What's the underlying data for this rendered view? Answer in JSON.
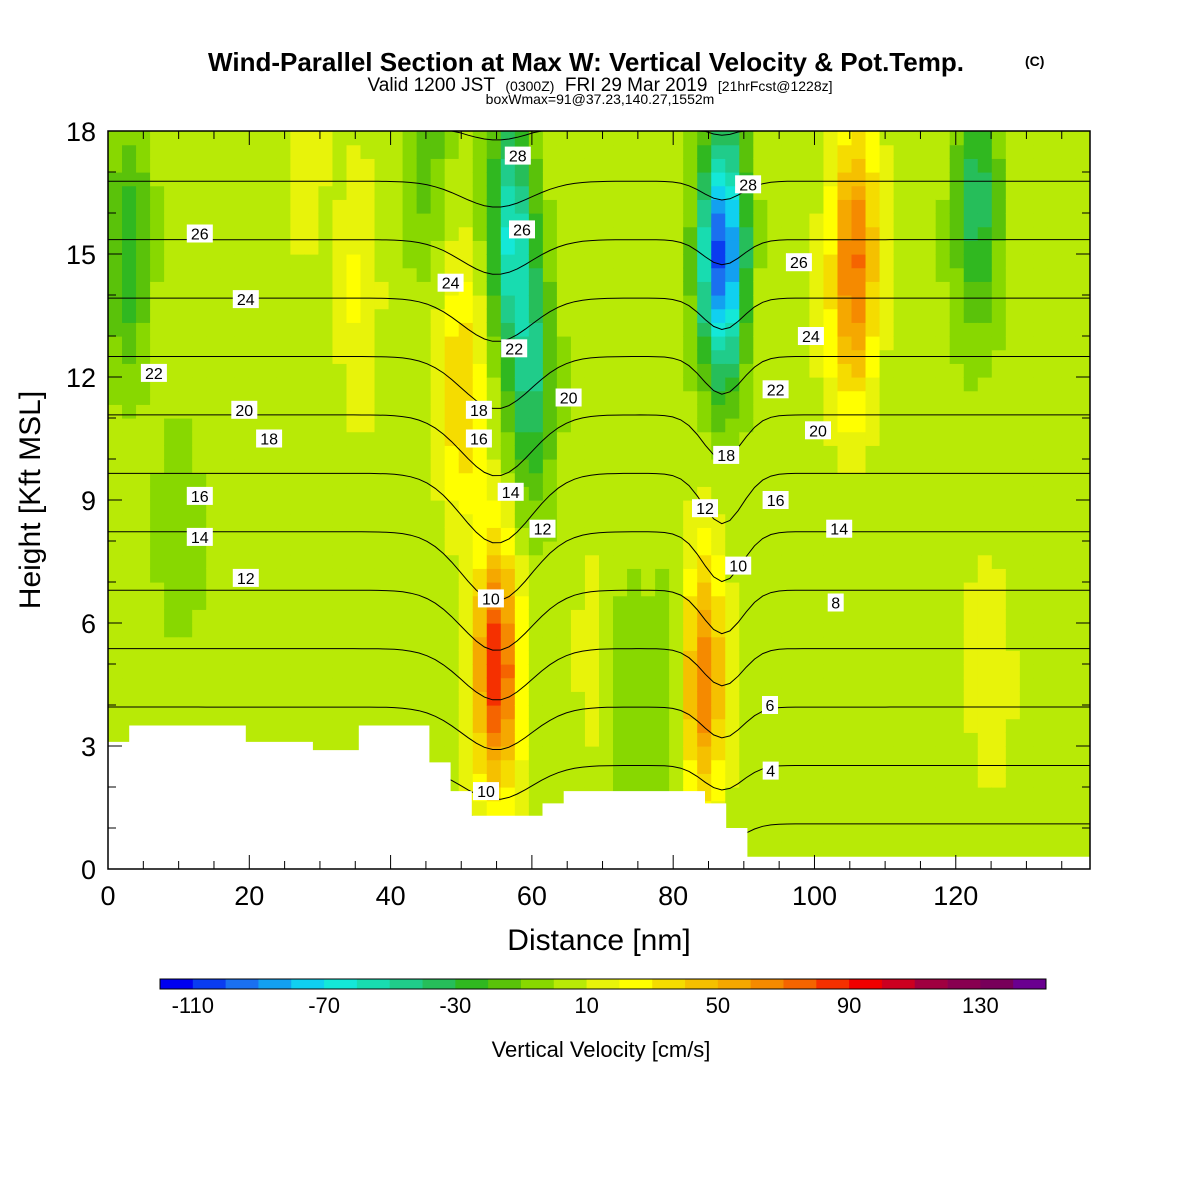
{
  "header": {
    "title": "Wind-Parallel Section at Max W: Vertical Velocity & Pot.Temp.",
    "copyright": "(C)",
    "valid_prefix": "Valid 1200 JST",
    "utc": "(0300Z)",
    "valid_date": "FRI 29 Mar 2019",
    "forecast": "[21hrFcst@1228z]",
    "box_info": "boxWmax=91@37.23,140.27,1552m"
  },
  "colors": {
    "scale": [
      "#0000f0",
      "#0a3cf0",
      "#1a70f0",
      "#13a0f0",
      "#10d0f0",
      "#14e8d8",
      "#18dcb0",
      "#20cc8a",
      "#26be5a",
      "#30b820",
      "#5ac20a",
      "#88d800",
      "#b8ea06",
      "#e8f30a",
      "#ffff00",
      "#f5dc00",
      "#f5c000",
      "#f5a800",
      "#f58a00",
      "#f56400",
      "#f53000",
      "#f00000",
      "#cc0020",
      "#a00040",
      "#880050",
      "#78005a",
      "#6a0090"
    ],
    "terrain": "#ffffff",
    "contour": "#000000"
  },
  "chart_data": {
    "type": "heatmap",
    "xlabel": "Distance [nm]",
    "ylabel": "Height [Kft MSL]",
    "xlim": [
      0,
      139
    ],
    "ylim": [
      0,
      18
    ],
    "x_ticks": [
      0,
      20,
      40,
      60,
      80,
      100,
      120
    ],
    "y_ticks": [
      0,
      3,
      6,
      9,
      12,
      15,
      18
    ],
    "colorbar": {
      "label": "Vertical Velocity [cm/s]",
      "min": -120,
      "max": 150,
      "step": 10,
      "tick_labels": [
        -110,
        -70,
        -30,
        10,
        50,
        90,
        130
      ]
    },
    "max_vertical_velocity_cm_s": 91,
    "max_location": {
      "lat": 37.23,
      "lon": 140.27,
      "height_m": 1552
    },
    "isentropes_c": [
      4,
      6,
      8,
      10,
      12,
      14,
      16,
      18,
      20,
      22,
      24,
      26,
      28
    ],
    "contour_labels": [
      {
        "value": 28,
        "x": 58,
        "y": 17.4
      },
      {
        "value": 28,
        "x": 90.6,
        "y": 16.7
      },
      {
        "value": 26,
        "x": 13,
        "y": 15.5
      },
      {
        "value": 26,
        "x": 58.6,
        "y": 15.6
      },
      {
        "value": 26,
        "x": 97.8,
        "y": 14.8
      },
      {
        "value": 24,
        "x": 48.5,
        "y": 14.3
      },
      {
        "value": 24,
        "x": 19.5,
        "y": 13.9
      },
      {
        "value": 24,
        "x": 99.5,
        "y": 13.0
      },
      {
        "value": 22,
        "x": 57.5,
        "y": 12.7
      },
      {
        "value": 22,
        "x": 6.5,
        "y": 12.1
      },
      {
        "value": 22,
        "x": 94.5,
        "y": 11.7
      },
      {
        "value": 20,
        "x": 65.2,
        "y": 11.5
      },
      {
        "value": 20,
        "x": 19.3,
        "y": 11.2
      },
      {
        "value": 20,
        "x": 100.5,
        "y": 10.7
      },
      {
        "value": 18,
        "x": 52.5,
        "y": 11.2
      },
      {
        "value": 18,
        "x": 22.8,
        "y": 10.5
      },
      {
        "value": 18,
        "x": 87.5,
        "y": 10.1
      },
      {
        "value": 16,
        "x": 52.5,
        "y": 10.5
      },
      {
        "value": 16,
        "x": 13,
        "y": 9.1
      },
      {
        "value": 16,
        "x": 94.5,
        "y": 9.0
      },
      {
        "value": 14,
        "x": 57,
        "y": 9.2
      },
      {
        "value": 14,
        "x": 13,
        "y": 8.1
      },
      {
        "value": 14,
        "x": 103.5,
        "y": 8.3
      },
      {
        "value": 12,
        "x": 61.5,
        "y": 8.3
      },
      {
        "value": 12,
        "x": 19.5,
        "y": 7.1
      },
      {
        "value": 12,
        "x": 84.5,
        "y": 8.8
      },
      {
        "value": 10,
        "x": 54.2,
        "y": 6.6
      },
      {
        "value": 10,
        "x": 89.2,
        "y": 7.4
      },
      {
        "value": 10,
        "x": 53.5,
        "y": 1.9
      },
      {
        "value": 8,
        "x": 103,
        "y": 6.5
      },
      {
        "value": 6,
        "x": 93.7,
        "y": 4.0
      },
      {
        "value": 4,
        "x": 93.8,
        "y": 2.4
      }
    ],
    "terrain_kft": [
      [
        0,
        3.1
      ],
      [
        3,
        3.1
      ],
      [
        3,
        3.5
      ],
      [
        6.5,
        3.5
      ],
      [
        6.5,
        3.5
      ],
      [
        19.5,
        3.5
      ],
      [
        19.5,
        3.1
      ],
      [
        29,
        3.1
      ],
      [
        29,
        2.9
      ],
      [
        35.5,
        2.9
      ],
      [
        35.5,
        3.5
      ],
      [
        45.5,
        3.5
      ],
      [
        45.5,
        2.6
      ],
      [
        48.5,
        2.6
      ],
      [
        48.5,
        1.9
      ],
      [
        51.5,
        1.9
      ],
      [
        51.5,
        1.3
      ],
      [
        61.5,
        1.3
      ],
      [
        61.5,
        1.6
      ],
      [
        64.5,
        1.6
      ],
      [
        64.5,
        1.9
      ],
      [
        84.5,
        1.9
      ],
      [
        84.5,
        1.6
      ],
      [
        87.5,
        1.6
      ],
      [
        87.5,
        1.0
      ],
      [
        90.5,
        1.0
      ],
      [
        90.5,
        0.3
      ],
      [
        139,
        0.3
      ]
    ],
    "updrafts": [
      {
        "x": 55,
        "y": 5.0,
        "w": 86
      },
      {
        "x": 84,
        "y": 4.6,
        "w": 70
      },
      {
        "x": 50,
        "y": 11.5,
        "w": 35
      },
      {
        "x": 106,
        "y": 15.5,
        "w": 45
      },
      {
        "x": 105,
        "y": 13.5,
        "w": 30
      },
      {
        "x": 35.5,
        "y": 14.0,
        "w": 20
      },
      {
        "x": 125,
        "y": 4.0,
        "w": 12
      },
      {
        "x": 28,
        "y": 16.5,
        "w": 10
      },
      {
        "x": 69,
        "y": 5.2,
        "w": 10
      }
    ],
    "downdrafts": [
      {
        "x": 87,
        "y": 15.0,
        "w": -110
      },
      {
        "x": 57,
        "y": 15.5,
        "w": -65
      },
      {
        "x": 60,
        "y": 12.0,
        "w": -45
      },
      {
        "x": 80.5,
        "y": 5.0,
        "w": -25
      },
      {
        "x": 73.5,
        "y": 5.0,
        "w": -15
      },
      {
        "x": 3,
        "y": 15.0,
        "w": -35
      },
      {
        "x": 123,
        "y": 16.5,
        "w": -40
      },
      {
        "x": 45,
        "y": 17.5,
        "w": -20
      },
      {
        "x": 10,
        "y": 9.0,
        "w": -10
      }
    ]
  }
}
